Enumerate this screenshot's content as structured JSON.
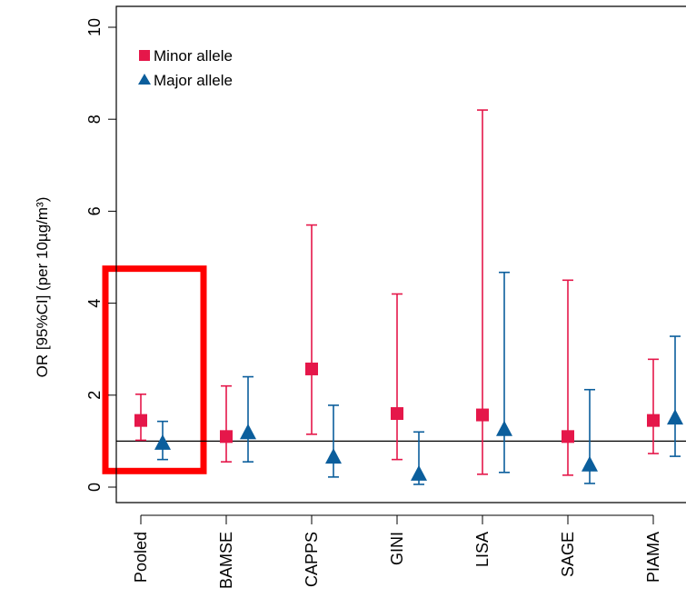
{
  "chart_data": {
    "type": "scatter",
    "title": "",
    "xlabel": "",
    "ylabel": "OR [95%CI] (per 10µg/m³)",
    "ylim": [
      0,
      10
    ],
    "yticks": [
      0,
      2,
      4,
      6,
      8,
      10
    ],
    "reference_line": 1,
    "categories": [
      "Pooled",
      "BAMSE",
      "CAPPS",
      "GINI",
      "LISA",
      "SAGE",
      "PIAMA"
    ],
    "highlight_category": "Pooled",
    "highlight_color": "#ff0000",
    "legend_position": "top-left",
    "series": [
      {
        "name": "Minor allele",
        "marker": "square",
        "color": "#e5174a",
        "values": [
          1.45,
          1.1,
          2.57,
          1.6,
          1.57,
          1.1,
          1.45
        ],
        "lower": [
          1.02,
          0.55,
          1.15,
          0.6,
          0.28,
          0.26,
          0.73
        ],
        "upper": [
          2.02,
          2.2,
          5.7,
          4.2,
          8.2,
          4.5,
          2.78
        ]
      },
      {
        "name": "Major allele",
        "marker": "triangle",
        "color": "#0b5e9c",
        "values": [
          0.95,
          1.18,
          0.65,
          0.28,
          1.25,
          0.48,
          1.5
        ],
        "lower": [
          0.6,
          0.55,
          0.22,
          0.06,
          0.32,
          0.08,
          0.67
        ],
        "upper": [
          1.43,
          2.4,
          1.78,
          1.2,
          4.67,
          2.12,
          3.28
        ]
      }
    ]
  }
}
